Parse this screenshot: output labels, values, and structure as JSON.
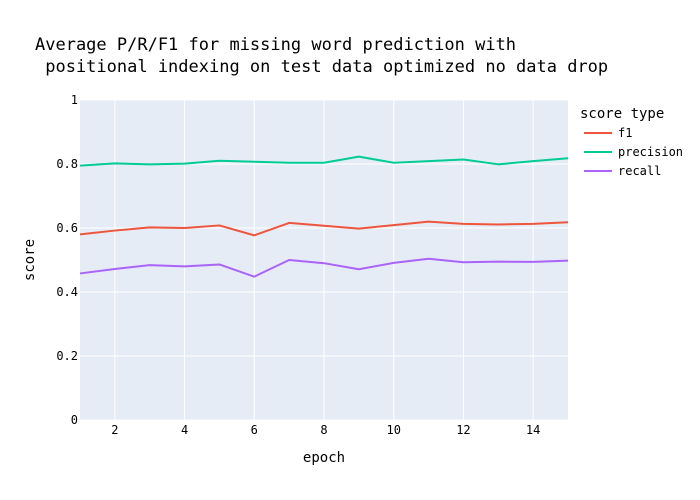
{
  "chart_data": {
    "type": "line",
    "title_lines": [
      "Average P/R/F1 for missing word prediction with",
      " positional indexing on test data optimized no data drop"
    ],
    "xlabel": "epoch",
    "ylabel": "score",
    "xlim": [
      1,
      15
    ],
    "ylim": [
      0,
      1
    ],
    "x_ticks": [
      2,
      4,
      6,
      8,
      10,
      12,
      14
    ],
    "y_ticks": [
      0,
      0.2,
      0.4,
      0.6,
      0.8,
      1
    ],
    "y_tick_labels": [
      "0",
      "0.2",
      "0.4",
      "0.6",
      "0.8",
      "1"
    ],
    "grid": true,
    "plot_background": "#e5ecf6",
    "legend": {
      "title": "score type",
      "placement": "right"
    },
    "x": [
      1,
      2,
      3,
      4,
      5,
      6,
      7,
      8,
      9,
      10,
      11,
      12,
      13,
      14,
      15
    ],
    "series": [
      {
        "name": "f1",
        "color": "#ef553b",
        "values": [
          0.58,
          0.592,
          0.602,
          0.6,
          0.608,
          0.577,
          0.616,
          0.607,
          0.598,
          0.609,
          0.62,
          0.613,
          0.611,
          0.613,
          0.618
        ]
      },
      {
        "name": "precision",
        "color": "#00cc96",
        "values": [
          0.795,
          0.802,
          0.799,
          0.801,
          0.81,
          0.807,
          0.804,
          0.804,
          0.823,
          0.804,
          0.809,
          0.814,
          0.799,
          0.809,
          0.818
        ]
      },
      {
        "name": "recall",
        "color": "#ab63fa",
        "values": [
          0.458,
          0.472,
          0.484,
          0.48,
          0.486,
          0.448,
          0.5,
          0.49,
          0.471,
          0.491,
          0.504,
          0.493,
          0.495,
          0.494,
          0.498
        ]
      }
    ]
  }
}
